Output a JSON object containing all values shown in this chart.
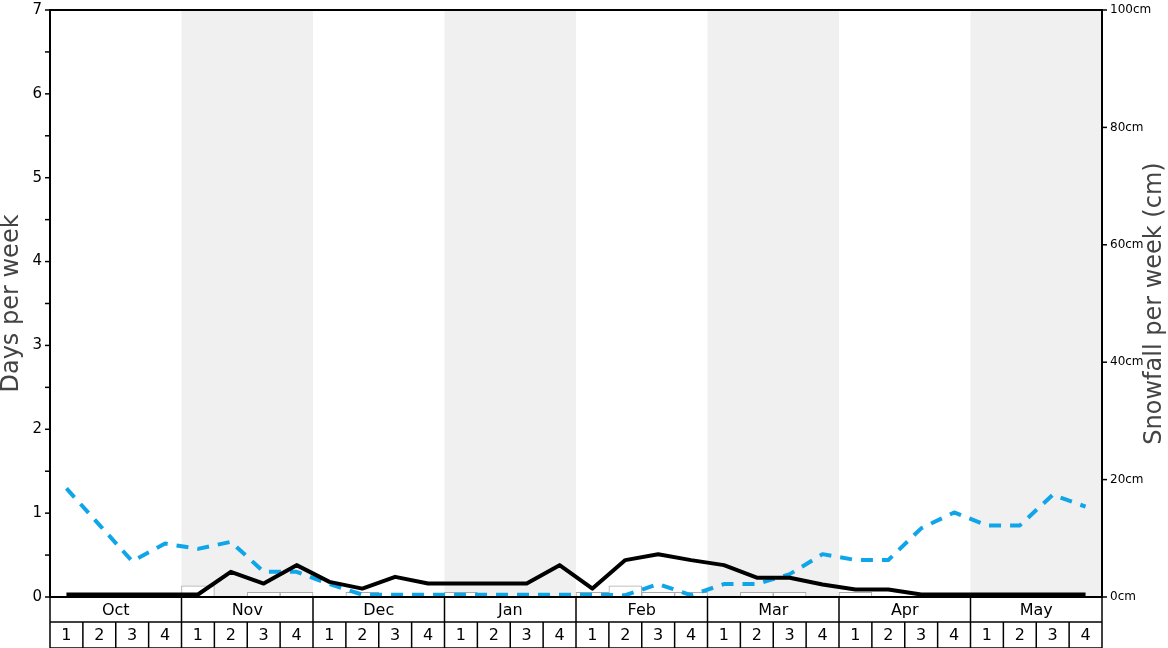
{
  "chart_data": {
    "type": "line",
    "ylabel": "Days per week",
    "y2label": "Snowfall per week (cm)",
    "categories": [
      "1",
      "2",
      "3",
      "4",
      "1",
      "2",
      "3",
      "4",
      "1",
      "2",
      "3",
      "4",
      "1",
      "2",
      "3",
      "4",
      "1",
      "2",
      "3",
      "4",
      "1",
      "2",
      "3",
      "4",
      "1",
      "2",
      "3",
      "4",
      "1",
      "2",
      "3",
      "4"
    ],
    "annotations": [
      "Oct",
      "Nov",
      "Dec",
      "Jan",
      "Feb",
      "Mar",
      "Apr",
      "May"
    ],
    "ylim": [
      0,
      7
    ],
    "yticks": [
      0,
      {
        "value": 0.5,
        "label": null
      },
      1,
      {
        "value": 1.5,
        "label": null
      },
      2,
      {
        "value": 2.5,
        "label": null
      },
      3,
      {
        "value": 3.5,
        "label": null
      },
      4,
      {
        "value": 4.5,
        "label": null
      },
      5,
      {
        "value": 5.5,
        "label": null
      },
      6,
      {
        "value": 6.5,
        "label": null
      },
      7
    ],
    "y2lim": [
      0,
      100
    ],
    "y2ticks": [
      {
        "value": 0,
        "label": "0cm"
      },
      {
        "value": 20,
        "label": "20cm"
      },
      {
        "value": 40,
        "label": "40cm"
      },
      {
        "value": 60,
        "label": "60cm"
      },
      {
        "value": 80,
        "label": "80cm"
      },
      {
        "value": 100,
        "label": "100cm"
      }
    ],
    "series": [
      {
        "type": "bar",
        "axis": "y2",
        "color": "#ffffff",
        "values": [
          0,
          0,
          0,
          0,
          1.9,
          0,
          0.8,
          0.8,
          0,
          0.8,
          0,
          0,
          0.8,
          0,
          0,
          0,
          0.8,
          1.9,
          0.8,
          0.8,
          0,
          0.8,
          0.8,
          0,
          0.8,
          0,
          0,
          0,
          0,
          0,
          0,
          0
        ]
      },
      {
        "axis": "y2",
        "color": "#0ea5e9",
        "line_style": "dashed",
        "values": [
          18.5,
          12.3,
          6.1,
          9.1,
          8.2,
          9.4,
          4.3,
          4.3,
          2.2,
          0.4,
          0.4,
          0.4,
          0.4,
          0.4,
          0.4,
          0.4,
          0.4,
          0.3,
          2.2,
          0.3,
          2.2,
          2.2,
          3.9,
          7.3,
          6.3,
          6.3,
          11.7,
          14.4,
          12.2,
          12.2,
          17.4,
          15.4
        ]
      },
      {
        "axis": "y",
        "color": "#000000",
        "line_style": "solid",
        "values": [
          0.03,
          0.03,
          0.03,
          0.03,
          0.03,
          0.3,
          0.16,
          0.38,
          0.18,
          0.1,
          0.24,
          0.16,
          0.16,
          0.16,
          0.16,
          0.38,
          0.1,
          0.44,
          0.51,
          0.44,
          0.38,
          0.23,
          0.23,
          0.15,
          0.09,
          0.09,
          0.03,
          0.03,
          0.03,
          0.03,
          0.03,
          0.03
        ]
      }
    ],
    "grid": false,
    "legend": false,
    "marker": "none"
  }
}
